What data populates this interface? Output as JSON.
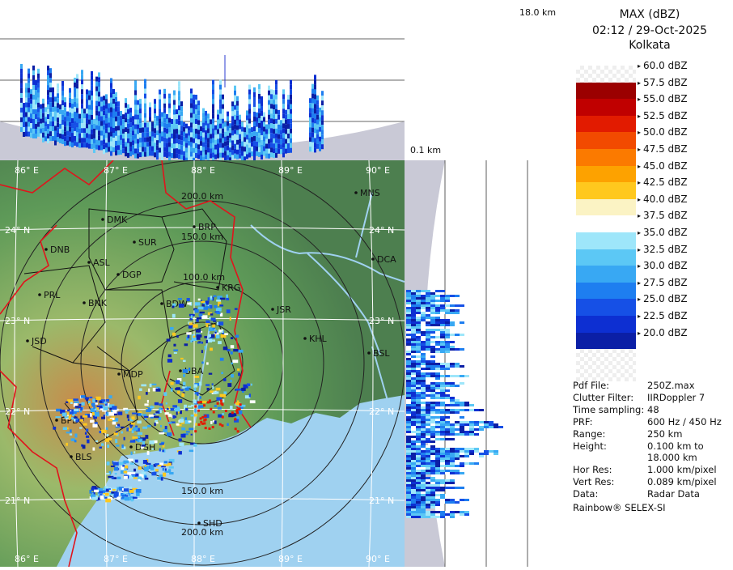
{
  "legend": {
    "product": "MAX (dBZ)",
    "datetime": "02:12 / 29-Oct-2025",
    "station": "Kolkata",
    "scale": [
      {
        "label": "60.0 dBZ",
        "color": ""
      },
      {
        "label": "57.5 dBZ",
        "color": "#9b0000"
      },
      {
        "label": "55.0 dBZ",
        "color": "#c00000"
      },
      {
        "label": "52.5 dBZ",
        "color": "#e21b00"
      },
      {
        "label": "50.0 dBZ",
        "color": "#f24a00"
      },
      {
        "label": "47.5 dBZ",
        "color": "#fb7a00"
      },
      {
        "label": "45.0 dBZ",
        "color": "#fda200"
      },
      {
        "label": "42.5 dBZ",
        "color": "#ffc81e"
      },
      {
        "label": "40.0 dBZ",
        "color": "#fbf3c4"
      },
      {
        "label": "37.5 dBZ",
        "color": "#ffffff"
      },
      {
        "label": "35.0 dBZ",
        "color": "#9ee6fa"
      },
      {
        "label": "32.5 dBZ",
        "color": "#5cc8f5"
      },
      {
        "label": "30.0 dBZ",
        "color": "#38a8f3"
      },
      {
        "label": "27.5 dBZ",
        "color": "#1e7ef0"
      },
      {
        "label": "25.0 dBZ",
        "color": "#1650e6"
      },
      {
        "label": "22.5 dBZ",
        "color": "#0d2fd2"
      },
      {
        "label": "20.0 dBZ",
        "color": "#0b1fa6"
      }
    ],
    "info": [
      {
        "key": "Pdf File:",
        "value": "250Z.max"
      },
      {
        "key": "Clutter Filter:",
        "value": "IIRDoppler 7"
      },
      {
        "key": "Time sampling:",
        "value": "48"
      },
      {
        "key": "PRF:",
        "value": "600 Hz / 450 Hz"
      },
      {
        "key": "Range:",
        "value": "250 km"
      },
      {
        "key": "Height:",
        "value": "0.100 km to"
      },
      {
        "key": "",
        "value": "18.000 km"
      },
      {
        "key": "Hor Res:",
        "value": "1.000 km/pixel"
      },
      {
        "key": "Vert Res:",
        "value": "0.089 km/pixel"
      },
      {
        "key": "Data:",
        "value": "Radar Data"
      }
    ],
    "credit": "Rainbow® SELEX-SI"
  },
  "heights": {
    "top": "18.0 km",
    "bottom": "0.1 km"
  },
  "map": {
    "lon_labels": [
      "86° E",
      "87° E",
      "88° E",
      "89° E",
      "90° E"
    ],
    "lat_labels": [
      "24° N",
      "23° N",
      "22° N",
      "21° N"
    ],
    "range_rings_km": [
      "200.0 km",
      "150.0 km",
      "100.0 km",
      "150.0 km",
      "200.0 km"
    ],
    "places": [
      "MNS",
      "DMK",
      "BRP",
      "DNB",
      "SUR",
      "DCA",
      "ASL",
      "DGP",
      "KRG",
      "PRL",
      "BNK",
      "BDW",
      "JSR",
      "KHL",
      "JSD",
      "BSL",
      "MDP",
      "UBA",
      "BPD",
      "DGH",
      "BLS",
      "SHD"
    ]
  },
  "colors": {
    "land": "#5a8f55",
    "sea": "#9fd1f0",
    "border_red": "#e0141c",
    "ring": "#222222"
  }
}
